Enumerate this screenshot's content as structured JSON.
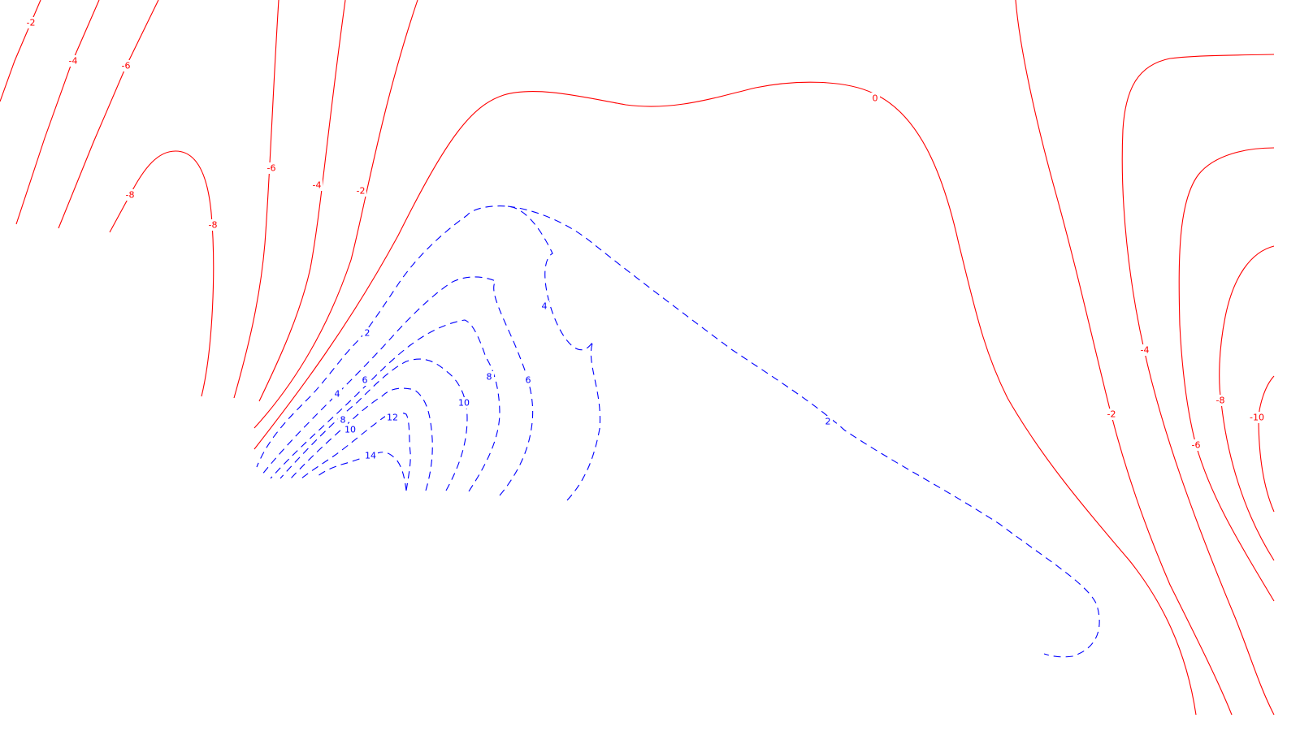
{
  "map": {
    "colors": {
      "negative_contour": "#ff0000",
      "positive_contour": "#0000ff",
      "background": "#ffffff"
    },
    "line_styles": {
      "negative": "solid",
      "positive": "dashed"
    },
    "contour_labels": {
      "neg_2_topleft": "-2",
      "neg_4_topleft": "-4",
      "neg_6_topleft": "-6",
      "neg_8_ridge_left": "-8",
      "neg_8_ridge_right": "-8",
      "neg_6_vertical": "-6",
      "neg_4_vertical": "-4",
      "neg_2_vertical": "-2",
      "zero": "0",
      "pos_2_inner": "2",
      "pos_2_outer": "2",
      "pos_4_top": "4",
      "pos_4_left": "4",
      "pos_6_left": "6",
      "pos_6_right": "6",
      "pos_8_left": "8",
      "pos_8_right": "8",
      "pos_10_left": "10",
      "pos_10_right": "10",
      "pos_12": "12",
      "pos_14": "14",
      "neg_4_right": "-4",
      "neg_2_right": "-2",
      "neg_8_right": "-8",
      "neg_6_right": "-6",
      "neg_10_right": "-10"
    }
  }
}
